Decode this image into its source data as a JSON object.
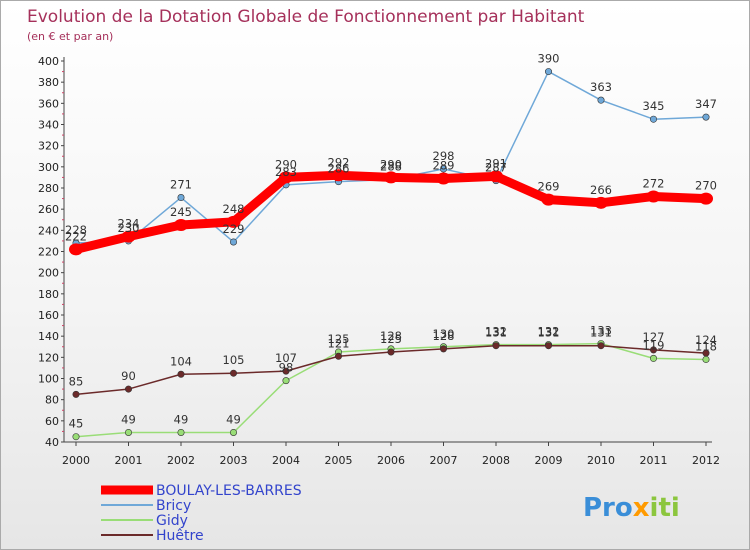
{
  "chart_data": {
    "type": "line",
    "title": "Evolution de la Dotation Globale de Fonctionnement par Habitant",
    "subtitle": "(en € et par an)",
    "xlabel": "",
    "ylabel": "",
    "categories": [
      "2000",
      "2001",
      "2002",
      "2003",
      "2004",
      "2005",
      "2006",
      "2007",
      "2008",
      "2009",
      "2010",
      "2011",
      "2012"
    ],
    "ylim": [
      40,
      400
    ],
    "yticks": [
      40,
      60,
      80,
      100,
      120,
      140,
      160,
      180,
      200,
      220,
      240,
      260,
      280,
      300,
      320,
      340,
      360,
      380,
      400
    ],
    "grid": false,
    "legend_position": "bottom-left",
    "series": [
      {
        "name": "BOULAY-LES-BARRES",
        "color": "#ff0000",
        "values": [
          222,
          234,
          245,
          248,
          290,
          292,
          290,
          289,
          291,
          269,
          266,
          272,
          270
        ]
      },
      {
        "name": "Bricy",
        "color": "#6fa8d8",
        "values": [
          228,
          230,
          271,
          229,
          283,
          286,
          288,
          298,
          287,
          390,
          363,
          345,
          347
        ]
      },
      {
        "name": "Gidy",
        "color": "#99dd77",
        "values": [
          45,
          49,
          49,
          49,
          98,
          125,
          128,
          130,
          132,
          132,
          133,
          119,
          118
        ]
      },
      {
        "name": "Huêtre",
        "color": "#6b2a2a",
        "values": [
          85,
          90,
          104,
          105,
          107,
          121,
          125,
          128,
          131,
          131,
          131,
          127,
          124
        ]
      }
    ]
  },
  "branding": {
    "part1": "Pro",
    "part2": "x",
    "part3": "iti"
  }
}
